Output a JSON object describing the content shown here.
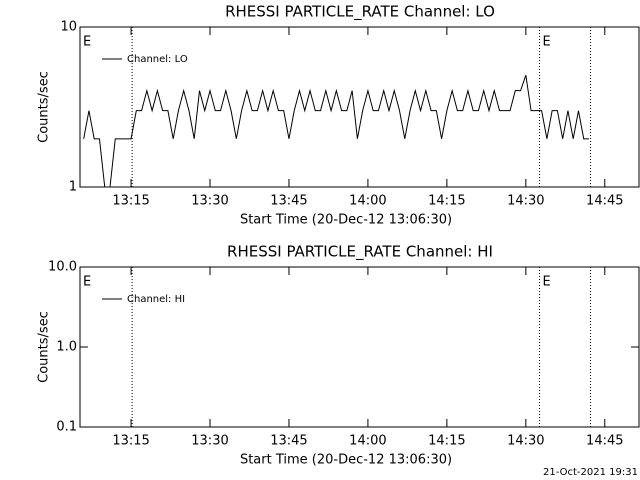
{
  "chart_data": [
    {
      "type": "line",
      "title": "RHESSI PARTICLE_RATE Channel: LO",
      "xlabel": "Start Time (20-Dec-12 13:06:30)",
      "ylabel": "Counts/sec",
      "ylog": true,
      "ylim": [
        1,
        10
      ],
      "yticks": [
        1,
        10
      ],
      "xlim": [
        785.3,
        891.5
      ],
      "xticks": [
        {
          "value": 795,
          "label": "13:15"
        },
        {
          "value": 810,
          "label": "13:30"
        },
        {
          "value": 825,
          "label": "13:45"
        },
        {
          "value": 840,
          "label": "14:00"
        },
        {
          "value": 855,
          "label": "14:15"
        },
        {
          "value": 870,
          "label": "14:30"
        },
        {
          "value": 885,
          "label": "14:45"
        }
      ],
      "vlines": [
        795.2,
        872.6,
        882.3
      ],
      "annotations": [
        {
          "text": "E",
          "x": 785.3
        },
        {
          "text": "E",
          "x": 872.6
        }
      ],
      "legend": "upper left",
      "x": [
        786,
        787,
        788,
        789,
        790,
        791,
        792,
        793,
        794,
        795,
        796,
        797,
        798,
        799,
        800,
        801,
        802,
        803,
        804,
        805,
        806,
        807,
        808,
        809,
        810,
        811,
        812,
        813,
        814,
        815,
        816,
        817,
        818,
        819,
        820,
        821,
        822,
        823,
        824,
        825,
        826,
        827,
        828,
        829,
        830,
        831,
        832,
        833,
        834,
        835,
        836,
        837,
        838,
        839,
        840,
        841,
        842,
        843,
        844,
        845,
        846,
        847,
        848,
        849,
        850,
        851,
        852,
        853,
        854,
        855,
        856,
        857,
        858,
        859,
        860,
        861,
        862,
        863,
        864,
        865,
        866,
        867,
        868,
        869,
        870,
        871,
        872,
        873,
        874,
        875,
        876,
        877,
        878,
        879,
        880,
        881,
        882
      ],
      "series": [
        {
          "name": "Channel: LO",
          "color": "#000000",
          "values": [
            2,
            3,
            2,
            2,
            1,
            1,
            2,
            2,
            2,
            2,
            3,
            3,
            4,
            3,
            4,
            3,
            3,
            2,
            3,
            4,
            3,
            2,
            4,
            3,
            4,
            3,
            3,
            4,
            3,
            2,
            3,
            4,
            3,
            3,
            4,
            3,
            4,
            3,
            3,
            2,
            3,
            4,
            3,
            4,
            3,
            3,
            4,
            3,
            4,
            3,
            3,
            4,
            2,
            3,
            4,
            3,
            3,
            4,
            3,
            4,
            3,
            2,
            3,
            4,
            3,
            4,
            3,
            3,
            2,
            3,
            4,
            3,
            3,
            4,
            3,
            3,
            4,
            3,
            4,
            3,
            3,
            3,
            4,
            4,
            5,
            3,
            3,
            3,
            2,
            3,
            3,
            2,
            3,
            2,
            3,
            2,
            2
          ]
        }
      ]
    },
    {
      "type": "line",
      "title": "RHESSI PARTICLE_RATE Channel: HI",
      "xlabel": "Start Time (20-Dec-12 13:06:30)",
      "ylabel": "Counts/sec",
      "ylog": true,
      "ylim": [
        0.1,
        10
      ],
      "yticks": [
        0.1,
        {
          "value": 1,
          "label": "1.0"
        },
        {
          "value": 10,
          "label": "10.0"
        }
      ],
      "xlim": [
        785.3,
        891.5
      ],
      "xticks": [
        {
          "value": 795,
          "label": "13:15"
        },
        {
          "value": 810,
          "label": "13:30"
        },
        {
          "value": 825,
          "label": "13:45"
        },
        {
          "value": 840,
          "label": "14:00"
        },
        {
          "value": 855,
          "label": "14:15"
        },
        {
          "value": 870,
          "label": "14:30"
        },
        {
          "value": 885,
          "label": "14:45"
        }
      ],
      "vlines": [
        795.2,
        872.6,
        882.3
      ],
      "annotations": [
        {
          "text": "E",
          "x": 785.3
        },
        {
          "text": "E",
          "x": 872.6
        }
      ],
      "legend": "upper left",
      "x": [],
      "series": [
        {
          "name": "Channel: HI",
          "color": "#000000",
          "values": []
        }
      ]
    }
  ],
  "timestamp": "21-Oct-2021 19:31"
}
